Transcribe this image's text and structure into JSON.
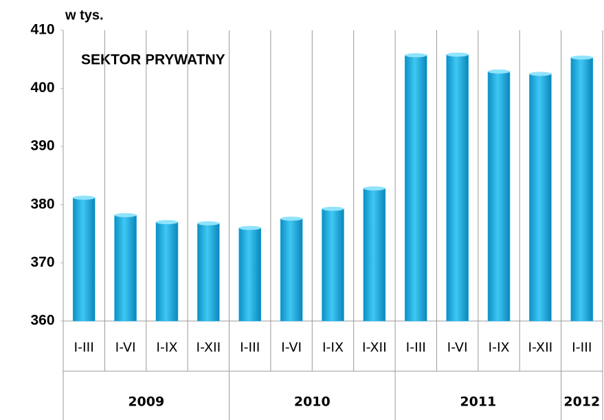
{
  "chart_data": {
    "type": "bar",
    "title": "w tys.",
    "annotation": "SEKTOR PRYWATNY",
    "categories": [
      "I-III",
      "I-VI",
      "I-IX",
      "I-XII",
      "I-III",
      "I-VI",
      "I-IX",
      "I-XII",
      "I-III",
      "I-VI",
      "I-IX",
      "I-XII",
      "I-III"
    ],
    "values": [
      381.2,
      378.2,
      377.0,
      376.8,
      376.0,
      377.6,
      379.3,
      382.8,
      405.7,
      405.8,
      402.9,
      402.5,
      405.3
    ],
    "groups": [
      {
        "label": "2009",
        "count": 4
      },
      {
        "label": "2010",
        "count": 4
      },
      {
        "label": "2011",
        "count": 4
      },
      {
        "label": "2012",
        "count": 1
      }
    ],
    "color": "#1cb0e6",
    "ylim": [
      360,
      410
    ],
    "yticks": [
      360,
      370,
      380,
      390,
      400,
      410
    ],
    "grid": false
  }
}
